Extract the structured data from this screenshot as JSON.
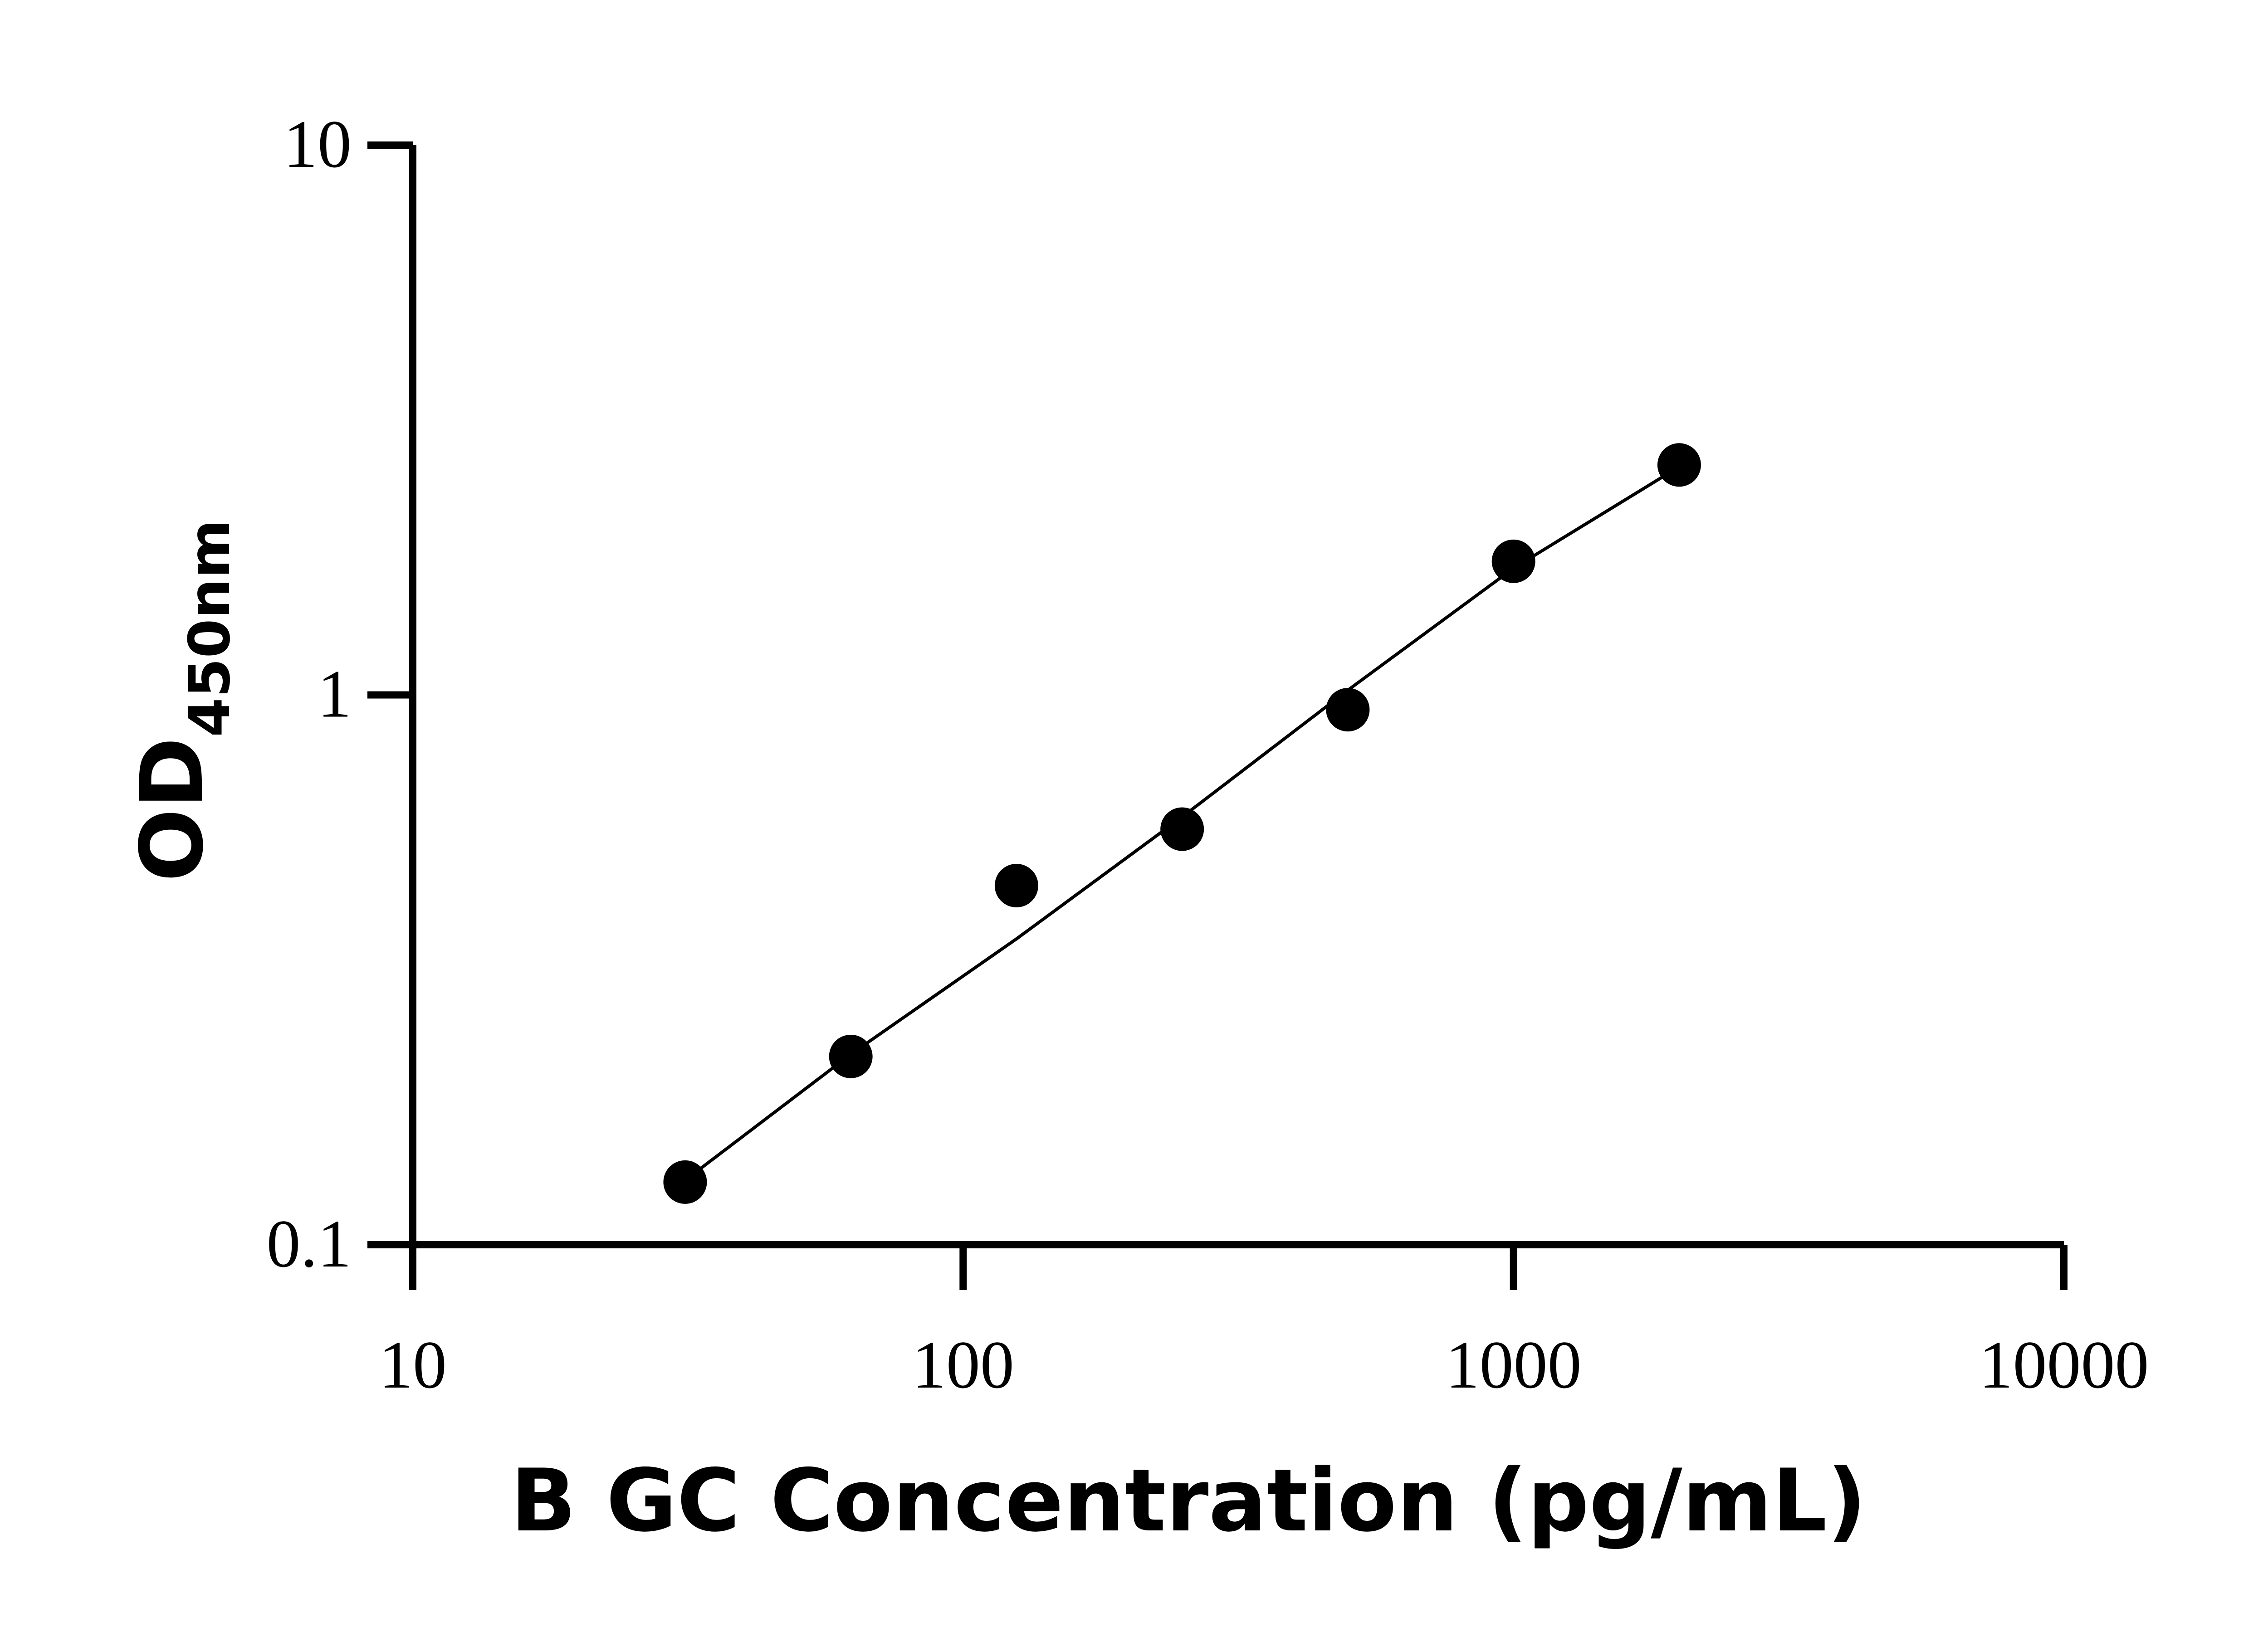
{
  "chart_data": {
    "type": "scatter",
    "xlabel": "B GC Concentration (pg/mL)",
    "ylabel": "OD",
    "ylabel_subscript": "450nm",
    "xscale": "log",
    "yscale": "log",
    "xlim": [
      10,
      10000
    ],
    "ylim": [
      0.1,
      10
    ],
    "x_ticks": [
      "10",
      "100",
      "1000",
      "10000"
    ],
    "y_ticks": [
      "0.1",
      "1",
      "10"
    ],
    "grid": false,
    "legend": "none",
    "series": [
      {
        "points": [
          {
            "x": 31.25,
            "y": 0.13
          },
          {
            "x": 62.5,
            "y": 0.22
          },
          {
            "x": 125,
            "y": 0.45
          },
          {
            "x": 250,
            "y": 0.57
          },
          {
            "x": 500,
            "y": 0.94
          },
          {
            "x": 1000,
            "y": 1.75
          },
          {
            "x": 2000,
            "y": 2.62
          }
        ],
        "color": "#000000"
      }
    ],
    "fit_curve": {
      "color": "#000000",
      "points": [
        {
          "x": 31.25,
          "y": 0.131
        },
        {
          "x": 62.5,
          "y": 0.222
        },
        {
          "x": 125,
          "y": 0.36
        },
        {
          "x": 250,
          "y": 0.6
        },
        {
          "x": 500,
          "y": 1.02
        },
        {
          "x": 1000,
          "y": 1.7
        },
        {
          "x": 2000,
          "y": 2.6
        }
      ]
    }
  }
}
